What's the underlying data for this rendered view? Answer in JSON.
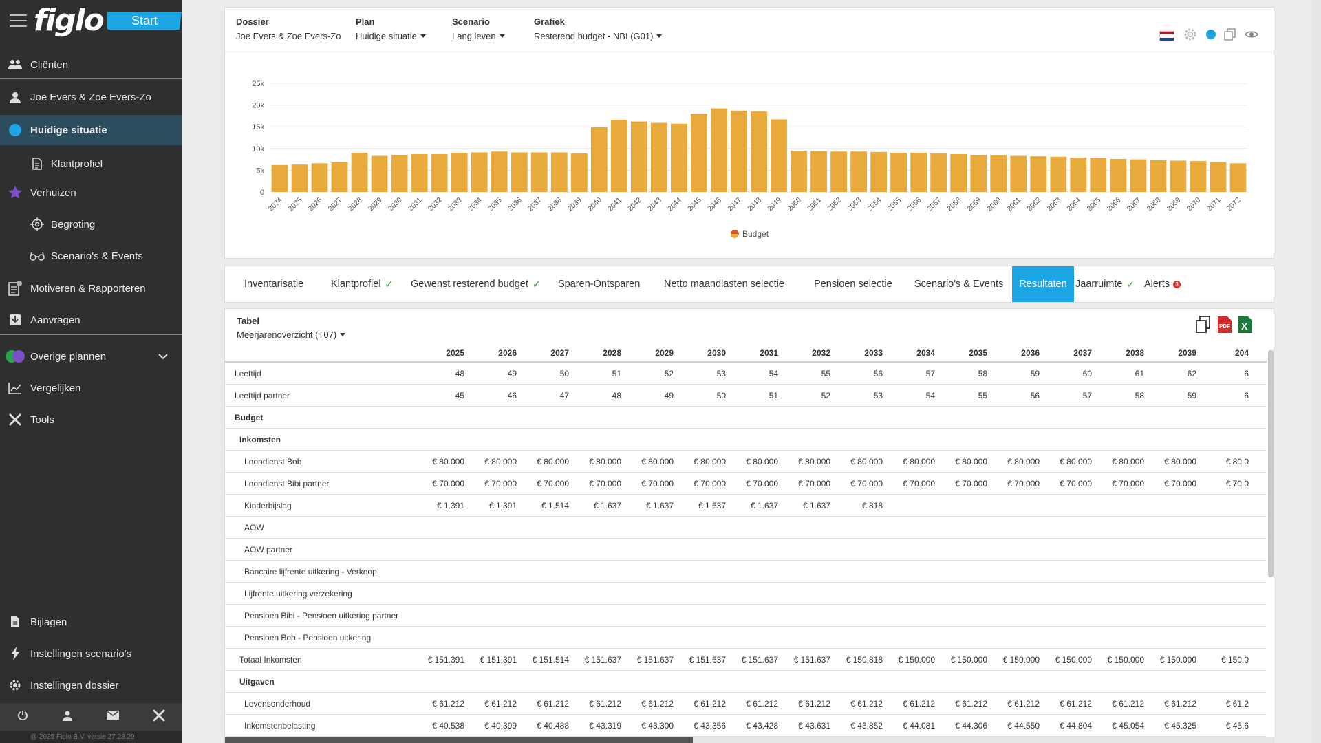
{
  "app": {
    "logo": "figlo",
    "start_label": "Start",
    "version": "@ 2025 Figlo B.V. versie 27.28.29"
  },
  "sidebar": {
    "items": [
      {
        "label": "Cliënten",
        "icon": "users-icon"
      },
      {
        "label": "Joe Evers & Zoe Evers-Zo",
        "icon": "user-icon"
      },
      {
        "label": "Huidige situatie",
        "icon": "circle-icon"
      },
      {
        "label": "Klantprofiel",
        "icon": "document-icon"
      },
      {
        "label": "Verhuizen",
        "icon": "star-icon"
      },
      {
        "label": "Begroting",
        "icon": "target-icon"
      },
      {
        "label": "Scenario's & Events",
        "icon": "glasses-icon"
      },
      {
        "label": "Motiveren & Rapporteren",
        "icon": "report-icon"
      },
      {
        "label": "Aanvragen",
        "icon": "inbox-icon"
      },
      {
        "label": "Overige plannen",
        "icon": "circles-icon"
      },
      {
        "label": "Vergelijken",
        "icon": "chart-line-icon"
      },
      {
        "label": "Tools",
        "icon": "tools-icon"
      },
      {
        "label": "Bijlagen",
        "icon": "file-icon"
      },
      {
        "label": "Instellingen scenario's",
        "icon": "bolt-icon"
      },
      {
        "label": "Instellingen dossier",
        "icon": "gear-icon"
      }
    ]
  },
  "header": {
    "dossier_label": "Dossier",
    "dossier_value": "Joe Evers & Zoe Evers-Zo",
    "plan_label": "Plan",
    "plan_value": "Huidige situatie",
    "scenario_label": "Scenario",
    "scenario_value": "Lang leven",
    "grafiek_label": "Grafiek",
    "grafiek_value": "Resterend budget - NBI (G01)"
  },
  "colors": {
    "bar": "#e8aa3a",
    "accent": "#1ca6e6",
    "sidebar": "#2f2f2f",
    "active_item": "#2b4d5e"
  },
  "chart_data": {
    "type": "bar",
    "categories": [
      "2024",
      "2025",
      "2026",
      "2027",
      "2028",
      "2029",
      "2030",
      "2031",
      "2032",
      "2033",
      "2034",
      "2035",
      "2036",
      "2037",
      "2038",
      "2039",
      "2040",
      "2041",
      "2042",
      "2043",
      "2044",
      "2045",
      "2046",
      "2047",
      "2048",
      "2049",
      "2050",
      "2051",
      "2052",
      "2053",
      "2054",
      "2055",
      "2056",
      "2057",
      "2058",
      "2059",
      "2060",
      "2061",
      "2062",
      "2063",
      "2064",
      "2065",
      "2066",
      "2067",
      "2068",
      "2069",
      "2070",
      "2071",
      "2072"
    ],
    "series": [
      {
        "name": "Budget",
        "values": [
          6200,
          6300,
          6600,
          6800,
          9000,
          8300,
          8500,
          8700,
          8700,
          9000,
          9100,
          9300,
          9100,
          9100,
          9100,
          8900,
          14900,
          16600,
          16200,
          15900,
          15700,
          18000,
          19200,
          18700,
          18500,
          16700,
          9500,
          9400,
          9300,
          9300,
          9200,
          9000,
          9000,
          8900,
          8700,
          8500,
          8400,
          8300,
          8200,
          8100,
          7900,
          7800,
          7600,
          7500,
          7300,
          7200,
          7100,
          6900,
          6600
        ]
      }
    ],
    "yticks": [
      "25k",
      "20k",
      "15k",
      "10k",
      "5k",
      "0"
    ],
    "ylim": [
      0,
      25000
    ],
    "legend": "bottom-center",
    "grid": true
  },
  "tabs": [
    {
      "label": "Inventarisatie",
      "check": ""
    },
    {
      "label": "Klantprofiel",
      "check": "✓"
    },
    {
      "label": "Gewenst resterend budget",
      "check": "✓"
    },
    {
      "label": "Sparen-Ontsparen",
      "check": ""
    },
    {
      "label": "Netto maandlasten selectie",
      "check": ""
    },
    {
      "label": "Pensioen selectie",
      "check": ""
    },
    {
      "label": "Scenario's & Events",
      "check": ""
    },
    {
      "label": "Resultaten",
      "check": ""
    },
    {
      "label": "Jaarruimte",
      "check": "✓"
    },
    {
      "label": "Alerts",
      "check": ""
    }
  ],
  "alerts_badge": "3",
  "table": {
    "label": "Tabel",
    "select_value": "Meerjarenoverzicht (T07)",
    "years": [
      "2025",
      "2026",
      "2027",
      "2028",
      "2029",
      "2030",
      "2031",
      "2032",
      "2033",
      "2034",
      "2035",
      "2036",
      "2037",
      "2038",
      "2039",
      "204"
    ],
    "rows": [
      {
        "label": "Leeftijd",
        "kind": "data",
        "indent": 0,
        "values": [
          "48",
          "49",
          "50",
          "51",
          "52",
          "53",
          "54",
          "55",
          "56",
          "57",
          "58",
          "59",
          "60",
          "61",
          "62",
          "6"
        ]
      },
      {
        "label": "Leeftijd partner",
        "kind": "data",
        "indent": 0,
        "values": [
          "45",
          "46",
          "47",
          "48",
          "49",
          "50",
          "51",
          "52",
          "53",
          "54",
          "55",
          "56",
          "57",
          "58",
          "59",
          "6"
        ]
      },
      {
        "label": "Budget",
        "kind": "section",
        "indent": 0,
        "values": []
      },
      {
        "label": "Inkomsten",
        "kind": "section",
        "indent": 1,
        "values": []
      },
      {
        "label": "Loondienst Bob",
        "kind": "data",
        "indent": 2,
        "values": [
          "€ 80.000",
          "€ 80.000",
          "€ 80.000",
          "€ 80.000",
          "€ 80.000",
          "€ 80.000",
          "€ 80.000",
          "€ 80.000",
          "€ 80.000",
          "€ 80.000",
          "€ 80.000",
          "€ 80.000",
          "€ 80.000",
          "€ 80.000",
          "€ 80.000",
          "€ 80.0"
        ]
      },
      {
        "label": "Loondienst Bibi partner",
        "kind": "data",
        "indent": 2,
        "values": [
          "€ 70.000",
          "€ 70.000",
          "€ 70.000",
          "€ 70.000",
          "€ 70.000",
          "€ 70.000",
          "€ 70.000",
          "€ 70.000",
          "€ 70.000",
          "€ 70.000",
          "€ 70.000",
          "€ 70.000",
          "€ 70.000",
          "€ 70.000",
          "€ 70.000",
          "€ 70.0"
        ]
      },
      {
        "label": "Kinderbijslag",
        "kind": "data",
        "indent": 2,
        "values": [
          "€ 1.391",
          "€ 1.391",
          "€ 1.514",
          "€ 1.637",
          "€ 1.637",
          "€ 1.637",
          "€ 1.637",
          "€ 1.637",
          "€ 818",
          "",
          "",
          "",
          "",
          "",
          "",
          ""
        ]
      },
      {
        "label": "AOW",
        "kind": "data",
        "indent": 2,
        "values": []
      },
      {
        "label": "AOW partner",
        "kind": "data",
        "indent": 2,
        "values": []
      },
      {
        "label": "Bancaire lijfrente uitkering - Verkoop",
        "kind": "data",
        "indent": 2,
        "values": []
      },
      {
        "label": "Lijfrente uitkering verzekering",
        "kind": "data",
        "indent": 2,
        "values": []
      },
      {
        "label": "Pensioen Bibi - Pensioen uitkering partner",
        "kind": "data",
        "indent": 2,
        "values": []
      },
      {
        "label": "Pensioen Bob - Pensioen uitkering",
        "kind": "data",
        "indent": 2,
        "values": []
      },
      {
        "label": "Totaal Inkomsten",
        "kind": "data",
        "indent": 1,
        "values": [
          "€ 151.391",
          "€ 151.391",
          "€ 151.514",
          "€ 151.637",
          "€ 151.637",
          "€ 151.637",
          "€ 151.637",
          "€ 151.637",
          "€ 150.818",
          "€ 150.000",
          "€ 150.000",
          "€ 150.000",
          "€ 150.000",
          "€ 150.000",
          "€ 150.000",
          "€ 150.0"
        ]
      },
      {
        "label": "Uitgaven",
        "kind": "section",
        "indent": 1,
        "values": []
      },
      {
        "label": "Levensonderhoud",
        "kind": "data",
        "indent": 2,
        "values": [
          "€ 61.212",
          "€ 61.212",
          "€ 61.212",
          "€ 61.212",
          "€ 61.212",
          "€ 61.212",
          "€ 61.212",
          "€ 61.212",
          "€ 61.212",
          "€ 61.212",
          "€ 61.212",
          "€ 61.212",
          "€ 61.212",
          "€ 61.212",
          "€ 61.212",
          "€ 61.2"
        ]
      },
      {
        "label": "Inkomstenbelasting",
        "kind": "data",
        "indent": 2,
        "values": [
          "€ 40.538",
          "€ 40.399",
          "€ 40.488",
          "€ 43.319",
          "€ 43.300",
          "€ 43.356",
          "€ 43.428",
          "€ 43.631",
          "€ 43.852",
          "€ 44.081",
          "€ 44.306",
          "€ 44.550",
          "€ 44.804",
          "€ 45.054",
          "€ 45.325",
          "€ 45.6"
        ]
      }
    ]
  }
}
